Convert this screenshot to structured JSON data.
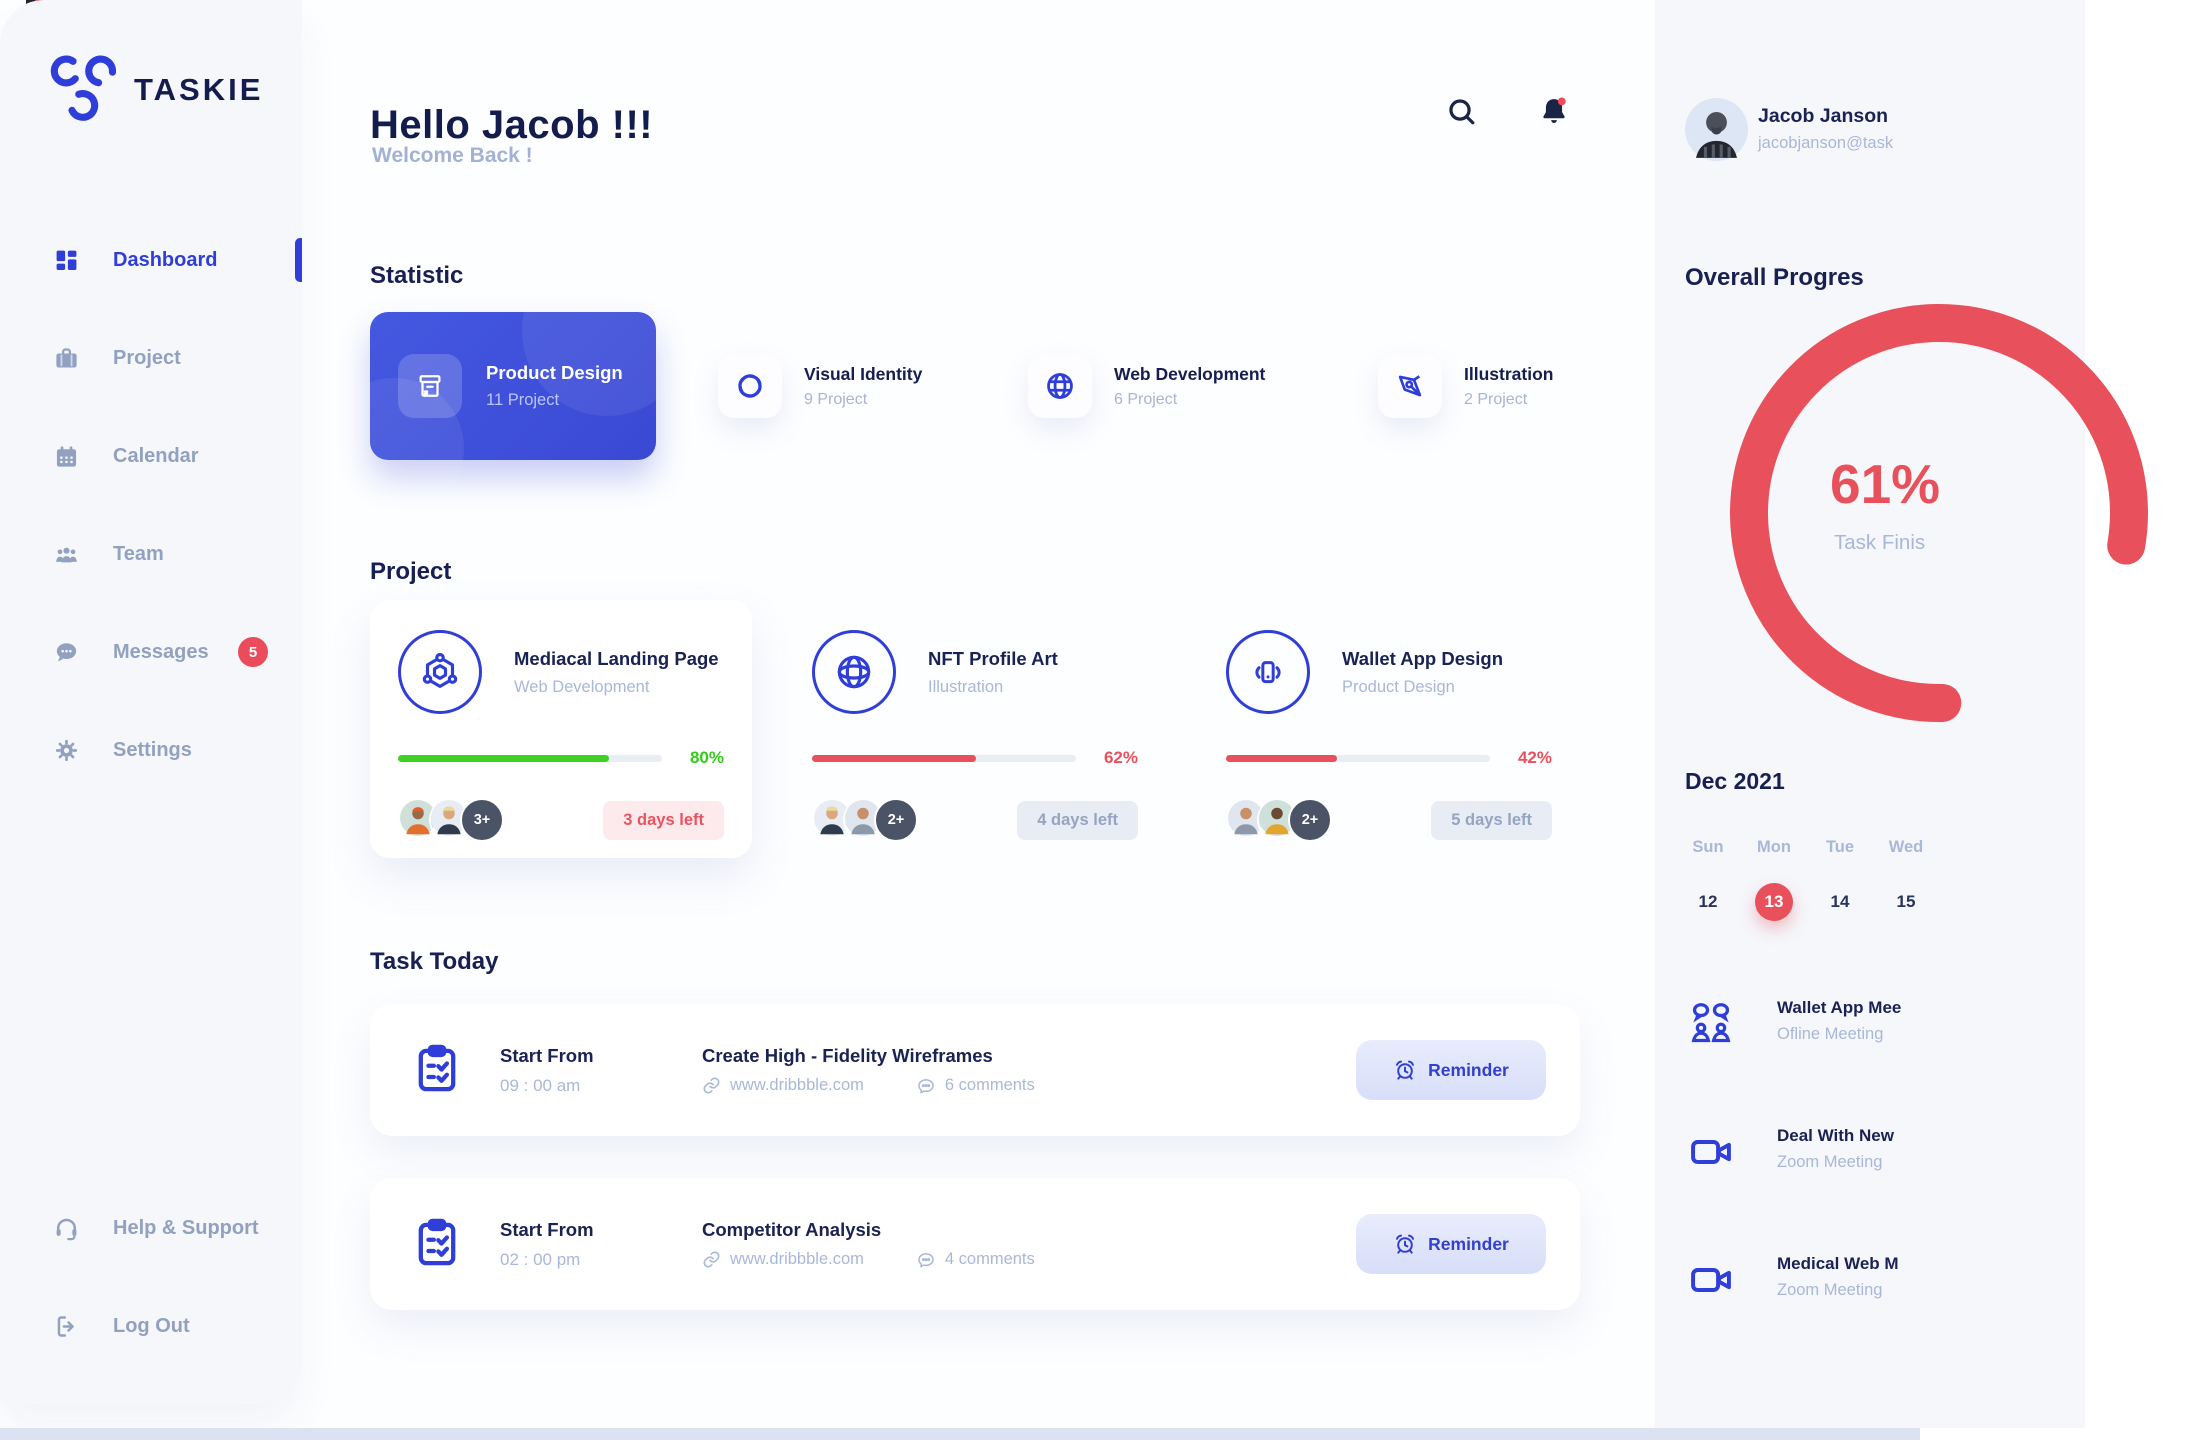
{
  "brand": {
    "name": "TASKIE"
  },
  "sidebar": {
    "items": [
      {
        "label": "Dashboard",
        "active": true
      },
      {
        "label": "Project"
      },
      {
        "label": "Calendar"
      },
      {
        "label": "Team"
      },
      {
        "label": "Messages",
        "badge": "5"
      },
      {
        "label": "Settings"
      }
    ],
    "footer": [
      {
        "label": "Help & Support"
      },
      {
        "label": "Log Out"
      }
    ]
  },
  "header": {
    "greeting": "Hello Jacob !!!",
    "welcome": "Welcome Back !"
  },
  "statistic": {
    "heading": "Statistic",
    "cards": [
      {
        "title": "Product Design",
        "count": "11 Project",
        "icon": "package-icon",
        "highlighted": true
      },
      {
        "title": "Visual Identity",
        "count": "9 Project",
        "icon": "swirl-icon"
      },
      {
        "title": "Web Development",
        "count": "6 Project",
        "icon": "globe-icon"
      },
      {
        "title": "Illustration",
        "count": "2 Project",
        "icon": "pen-tool-icon"
      }
    ]
  },
  "projects": {
    "heading": "Project",
    "cards": [
      {
        "title": "Mediacal Landing Page",
        "category": "Web Development",
        "progress": 80,
        "progress_label": "80%",
        "bar_color": "#3bd31f",
        "days_left": "3 days left",
        "days_left_urgent": true,
        "extra_members": "3+",
        "icon": "molecule-icon"
      },
      {
        "title": "NFT Profile Art",
        "category": "Illustration",
        "progress": 62,
        "progress_label": "62%",
        "bar_color": "#e8505b",
        "days_left": "4 days left",
        "days_left_urgent": false,
        "extra_members": "2+",
        "icon": "sphere-icon"
      },
      {
        "title": "Wallet App Design",
        "category": "Product Design",
        "progress": 42,
        "progress_label": "42%",
        "bar_color": "#e8505b",
        "days_left": "5 days left",
        "days_left_urgent": false,
        "extra_members": "2+",
        "icon": "phone-waves-icon"
      }
    ]
  },
  "tasks": {
    "heading": "Task Today",
    "rows": [
      {
        "start_label": "Start From",
        "time": "09 : 00 am",
        "title": "Create High - Fidelity Wireframes",
        "link": "www.dribbble.com",
        "comments": "6 comments",
        "action": "Reminder"
      },
      {
        "start_label": "Start From",
        "time": "02 : 00 pm",
        "title": "Competitor Analysis",
        "link": "www.dribbble.com",
        "comments": "4 comments",
        "action": "Reminder"
      }
    ]
  },
  "profile": {
    "name": "Jacob Janson",
    "email": "jacobjanson@task"
  },
  "overall": {
    "heading": "Overall Progres",
    "percent": 61,
    "percent_label": "61%",
    "caption": "Task Finis",
    "ring_color": "#e8505b"
  },
  "calendar": {
    "month": "Dec 2021",
    "day_headers": [
      "Sun",
      "Mon",
      "Tue",
      "Wed"
    ],
    "dates": [
      {
        "label": "12",
        "selected": false
      },
      {
        "label": "13",
        "selected": true
      },
      {
        "label": "14",
        "selected": false
      },
      {
        "label": "15",
        "selected": false
      }
    ]
  },
  "meetings": [
    {
      "title": "Wallet App Mee",
      "subtitle": "Ofline Meeting",
      "icon": "people-chat-icon"
    },
    {
      "title": "Deal With New",
      "subtitle": "Zoom Meeting",
      "icon": "video-camera-icon"
    },
    {
      "title": "Medical Web M",
      "subtitle": "Zoom Meeting",
      "icon": "video-camera-icon"
    }
  ],
  "colors": {
    "accent_blue": "#2f3ed8",
    "accent_red": "#e8505b",
    "green": "#3bd31f",
    "navy": "#1b2559"
  }
}
